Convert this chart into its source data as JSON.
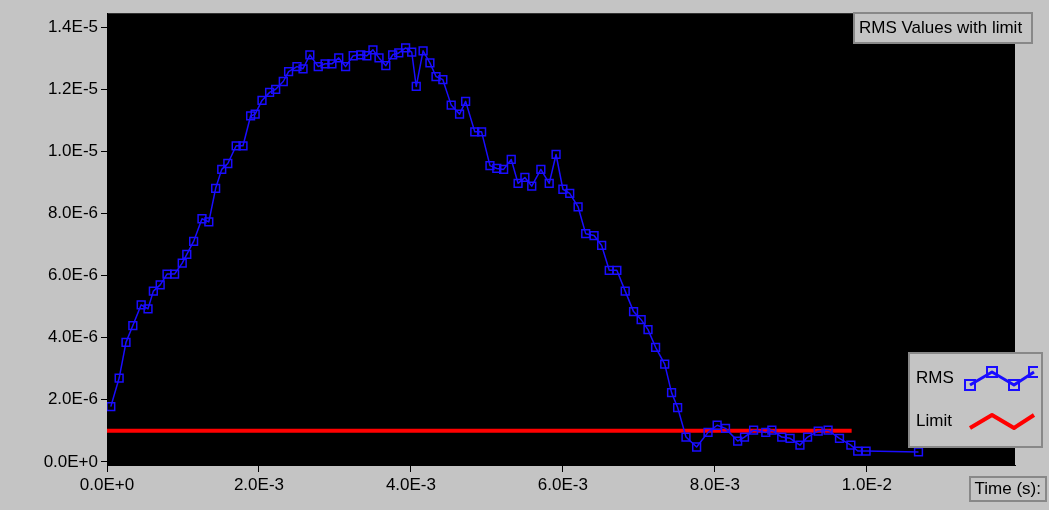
{
  "chart_data": {
    "type": "line",
    "title": "RMS Values with limit",
    "xlabel": "Time (s):",
    "xlim": [
      0,
      0.01195
    ],
    "xticks": [
      {
        "value": 0,
        "label": "0.0E+0"
      },
      {
        "value": 0.002,
        "label": "2.0E-3"
      },
      {
        "value": 0.004,
        "label": "4.0E-3"
      },
      {
        "value": 0.006,
        "label": "6.0E-3"
      },
      {
        "value": 0.008,
        "label": "8.0E-3"
      },
      {
        "value": 0.01,
        "label": "1.0E-2"
      }
    ],
    "ylim": [
      -1e-07,
      1.445e-05
    ],
    "yticks": [
      {
        "value": 0,
        "label": "0.0E+0"
      },
      {
        "value": 2e-06,
        "label": "2.0E-6"
      },
      {
        "value": 4e-06,
        "label": "4.0E-6"
      },
      {
        "value": 6e-06,
        "label": "6.0E-6"
      },
      {
        "value": 8e-06,
        "label": "8.0E-6"
      },
      {
        "value": 1e-05,
        "label": "1.0E-5"
      },
      {
        "value": 1.2e-05,
        "label": "1.2E-5"
      },
      {
        "value": 1.4e-05,
        "label": "1.4E-5"
      }
    ],
    "grid": false,
    "legend": "bottom right",
    "line_style": "solid",
    "series": [
      {
        "name": "RMS",
        "color": "#1a0dff",
        "marker": "square",
        "x": [
          5e-05,
          0.00016,
          0.00025,
          0.00034,
          0.00045,
          0.00054,
          0.00061,
          0.0007,
          0.00079,
          0.00089,
          0.00099,
          0.00105,
          0.00114,
          0.00125,
          0.00134,
          0.00143,
          0.00151,
          0.00159,
          0.0017,
          0.00179,
          0.00189,
          0.00195,
          0.00204,
          0.00214,
          0.00222,
          0.00232,
          0.00239,
          0.0025,
          0.00258,
          0.00267,
          0.00278,
          0.00287,
          0.00296,
          0.00305,
          0.00314,
          0.00324,
          0.00334,
          0.00342,
          0.0035,
          0.00358,
          0.00367,
          0.00376,
          0.00384,
          0.00393,
          0.00401,
          0.00407,
          0.00416,
          0.00425,
          0.00433,
          0.00442,
          0.00453,
          0.00464,
          0.00472,
          0.00484,
          0.00493,
          0.00504,
          0.00513,
          0.00522,
          0.00532,
          0.00541,
          0.0055,
          0.00559,
          0.00571,
          0.00582,
          0.00591,
          0.006,
          0.00609,
          0.0062,
          0.0063,
          0.00641,
          0.00651,
          0.00661,
          0.00671,
          0.00682,
          0.00693,
          0.00703,
          0.00712,
          0.00722,
          0.00734,
          0.00743,
          0.00751,
          0.00762,
          0.00776,
          0.00791,
          0.00803,
          0.00814,
          0.0083,
          0.00839,
          0.00851,
          0.00867,
          0.00875,
          0.00888,
          0.00899,
          0.00912,
          0.00922,
          0.00936,
          0.00949,
          0.00964,
          0.00979,
          0.00988,
          0.00999,
          0.01068
        ],
        "values": [
          1.78e-06,
          2.7e-06,
          3.85e-06,
          4.39e-06,
          5.06e-06,
          4.93e-06,
          5.5e-06,
          5.7e-06,
          6.05e-06,
          6.05e-06,
          6.4e-06,
          6.68e-06,
          7.1e-06,
          7.83e-06,
          7.73e-06,
          8.81e-06,
          9.42e-06,
          9.61e-06,
          1.018e-05,
          1.018e-05,
          1.114e-05,
          1.12e-05,
          1.164e-05,
          1.19e-05,
          1.2e-05,
          1.225e-05,
          1.257e-05,
          1.273e-05,
          1.266e-05,
          1.311e-05,
          1.273e-05,
          1.282e-05,
          1.282e-05,
          1.301e-05,
          1.273e-05,
          1.308e-05,
          1.311e-05,
          1.308e-05,
          1.327e-05,
          1.301e-05,
          1.276e-05,
          1.311e-05,
          1.317e-05,
          1.333e-05,
          1.32e-05,
          1.209e-05,
          1.324e-05,
          1.285e-05,
          1.241e-05,
          1.231e-05,
          1.149e-05,
          1.12e-05,
          1.161e-05,
          1.063e-05,
          1.063e-05,
          9.54e-06,
          9.45e-06,
          9.42e-06,
          9.74e-06,
          8.97e-06,
          9.16e-06,
          8.88e-06,
          9.42e-06,
          8.97e-06,
          9.9e-06,
          8.78e-06,
          8.65e-06,
          8.21e-06,
          7.35e-06,
          7.29e-06,
          6.97e-06,
          6.17e-06,
          6.17e-06,
          5.5e-06,
          4.84e-06,
          4.58e-06,
          4.26e-06,
          3.69e-06,
          3.15e-06,
          2.23e-06,
          1.75e-06,
          8e-07,
          4.8e-07,
          9.5e-07,
          1.18e-06,
          1.08e-06,
          6.7e-07,
          8e-07,
          1.02e-06,
          9.5e-07,
          1.02e-06,
          8e-07,
          7.6e-07,
          5.4e-07,
          8e-07,
          9.9e-07,
          1.02e-06,
          7.6e-07,
          5.4e-07,
          3.5e-07,
          3.5e-07,
          3.2e-07
        ]
      },
      {
        "name": "Limit",
        "color": "#ff0000",
        "marker": "none",
        "x": [
          0,
          0.0098
        ],
        "values": [
          1e-06,
          1e-06
        ]
      }
    ]
  }
}
